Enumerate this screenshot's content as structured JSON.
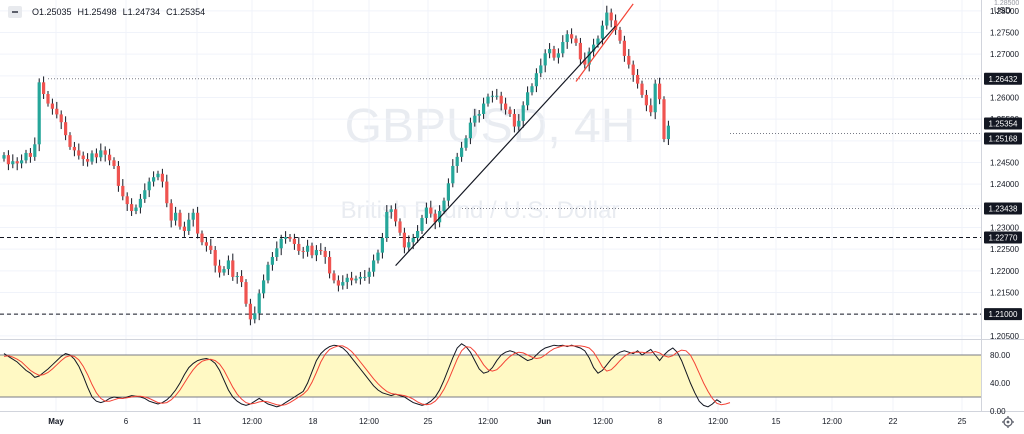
{
  "header": {
    "open": "O1.25035",
    "high": "H1.25498",
    "low": "L1.24734",
    "close": "C1.25354"
  },
  "watermark": {
    "symbol": "GBPUSD, 4H",
    "name": "British Pound / U.S. Dollar"
  },
  "axis": {
    "currency": "USD",
    "top_clipped_label": "1.28500"
  },
  "colors": {
    "up": "#26a69a",
    "down": "#ef5350",
    "wick": "#131722",
    "stoch_k": "#131722",
    "stoch_d": "#f44336",
    "band_fill": "#fff9c4",
    "tag_bg": "#131722",
    "trendline": "#131722",
    "trendline_red": "#f44336"
  },
  "chart_data": [
    {
      "type": "candlestick",
      "title": "GBPUSD, 4H",
      "ylim": [
        1.2045,
        1.2825
      ],
      "y_ticks": [
        "1.28000",
        "1.27500",
        "1.27000",
        "1.26500",
        "1.26000",
        "1.25500",
        "1.25000",
        "1.24500",
        "1.24000",
        "1.23500",
        "1.23000",
        "1.22500",
        "1.22000",
        "1.21500",
        "1.21000",
        "1.20500"
      ],
      "x_ticks": [
        "May",
        "6",
        "11",
        "12:00",
        "18",
        "12:00",
        "25",
        "12:00",
        "Jun",
        "12:00",
        "8",
        "12:00",
        "15",
        "12:00",
        "22",
        "25"
      ],
      "price_tags": [
        {
          "label": "1.26432",
          "value": 1.26432
        },
        {
          "label": "1.25354",
          "value": 1.25354
        },
        {
          "label": "1.25168",
          "value": 1.25168
        },
        {
          "label": "1.23438",
          "value": 1.23438
        },
        {
          "label": "1.22770",
          "value": 1.2277
        },
        {
          "label": "1.21000",
          "value": 1.21
        }
      ],
      "horizontal_lines": [
        {
          "value": 1.26432,
          "style": "dotted"
        },
        {
          "value": 1.25168,
          "style": "dotted"
        },
        {
          "value": 1.23438,
          "style": "dotted"
        },
        {
          "value": 1.2277,
          "style": "dashed"
        },
        {
          "value": 1.21,
          "style": "dashed"
        }
      ],
      "trendlines": [
        {
          "from": [
            89,
            1.2212
          ],
          "to": [
            139,
            1.2765
          ],
          "color": "black"
        },
        {
          "from": [
            130,
            1.2637
          ],
          "to": [
            143,
            1.2816
          ],
          "color": "red"
        }
      ],
      "closes": [
        1.2467,
        1.2446,
        1.2453,
        1.2448,
        1.2455,
        1.2472,
        1.2463,
        1.2492,
        1.2635,
        1.2608,
        1.2586,
        1.2574,
        1.2561,
        1.2543,
        1.2513,
        1.2486,
        1.2478,
        1.2466,
        1.2458,
        1.2452,
        1.2471,
        1.2462,
        1.2478,
        1.2468,
        1.2455,
        1.2442,
        1.2396,
        1.2372,
        1.2354,
        1.2338,
        1.2346,
        1.2366,
        1.2386,
        1.2406,
        1.2416,
        1.2424,
        1.2406,
        1.2356,
        1.2316,
        1.2334,
        1.2302,
        1.2292,
        1.2318,
        1.2334,
        1.2286,
        1.2266,
        1.2258,
        1.2248,
        1.2212,
        1.2196,
        1.2204,
        1.2224,
        1.2186,
        1.2188,
        1.2174,
        1.2124,
        1.2088,
        1.2102,
        1.2148,
        1.2178,
        1.2214,
        1.2232,
        1.2252,
        1.2274,
        1.2278,
        1.2274,
        1.2262,
        1.2246,
        1.2244,
        1.2258,
        1.2236,
        1.2248,
        1.2246,
        1.2232,
        1.2194,
        1.2178,
        1.2166,
        1.2174,
        1.2184,
        1.2178,
        1.2182,
        1.2186,
        1.2186,
        1.2198,
        1.2224,
        1.2242,
        1.2276,
        1.2336,
        1.2342,
        1.2314,
        1.2288,
        1.2254,
        1.2266,
        1.2276,
        1.2292,
        1.2322,
        1.2346,
        1.2332,
        1.2312,
        1.2338,
        1.2362,
        1.2402,
        1.2442,
        1.2463,
        1.2484,
        1.2506,
        1.2542,
        1.2558,
        1.2562,
        1.2586,
        1.2602,
        1.2604,
        1.2604,
        1.2586,
        1.2572,
        1.2562,
        1.2533,
        1.2546,
        1.2582,
        1.2612,
        1.2626,
        1.2656,
        1.2674,
        1.2702,
        1.2712,
        1.2692,
        1.2702,
        1.2728,
        1.2746,
        1.2736,
        1.2726,
        1.2688,
        1.2676,
        1.2706,
        1.2722,
        1.2736,
        1.2766,
        1.2796,
        1.2778,
        1.2756,
        1.2731,
        1.2696,
        1.2676,
        1.2652,
        1.2632,
        1.2606,
        1.2582,
        1.2566,
        1.2632,
        1.2596,
        1.2504,
        1.2535
      ],
      "overlay_type": "candlestick"
    },
    {
      "type": "line",
      "title": "Stochastic",
      "ylim": [
        0,
        100
      ],
      "y_ticks": [
        "80.00",
        "40.00",
        "0.00"
      ],
      "band": [
        20,
        80
      ],
      "series": [
        {
          "color": "black",
          "values": [
            82,
            78,
            74,
            70,
            64,
            58,
            54,
            48,
            50,
            55,
            60,
            66,
            72,
            78,
            82,
            80,
            74,
            64,
            50,
            34,
            20,
            14,
            12,
            14,
            18,
            20,
            19,
            18,
            20,
            22,
            21,
            20,
            18,
            14,
            12,
            10,
            12,
            16,
            22,
            30,
            40,
            52,
            62,
            68,
            72,
            74,
            75,
            73,
            68,
            58,
            44,
            30,
            20,
            14,
            10,
            8,
            10,
            14,
            18,
            14,
            10,
            8,
            6,
            8,
            12,
            16,
            20,
            24,
            28,
            40,
            56,
            72,
            82,
            88,
            92,
            94,
            93,
            90,
            84,
            76,
            68,
            60,
            52,
            44,
            36,
            30,
            26,
            24,
            22,
            24,
            22,
            20,
            16,
            12,
            10,
            8,
            10,
            14,
            20,
            30,
            44,
            60,
            76,
            90,
            96,
            92,
            84,
            72,
            60,
            54,
            56,
            62,
            72,
            80,
            84,
            86,
            84,
            80,
            76,
            72,
            74,
            80,
            86,
            90,
            92,
            94,
            93,
            94,
            92,
            94,
            92,
            90,
            86,
            76,
            62,
            54,
            58,
            66,
            74,
            80,
            84,
            86,
            84,
            82,
            86,
            80,
            84,
            88,
            80,
            72,
            80,
            86,
            90,
            84,
            72,
            56,
            40,
            26,
            14,
            8,
            6,
            10,
            16,
            12
          ]
        },
        {
          "color": "red",
          "values": [
            78,
            79,
            77,
            74,
            70,
            64,
            58,
            54,
            51,
            52,
            55,
            60,
            66,
            72,
            77,
            79,
            78,
            73,
            64,
            52,
            38,
            26,
            18,
            14,
            14,
            16,
            18,
            18,
            19,
            20,
            21,
            21,
            20,
            18,
            15,
            12,
            11,
            12,
            16,
            22,
            30,
            40,
            50,
            59,
            66,
            71,
            73,
            74,
            72,
            67,
            58,
            46,
            34,
            24,
            17,
            12,
            10,
            11,
            13,
            14,
            13,
            11,
            9,
            8,
            9,
            12,
            16,
            20,
            24,
            30,
            41,
            55,
            70,
            81,
            88,
            91,
            93,
            93,
            90,
            85,
            78,
            70,
            62,
            54,
            46,
            39,
            33,
            28,
            25,
            24,
            23,
            22,
            20,
            17,
            13,
            10,
            9,
            10,
            14,
            21,
            31,
            44,
            59,
            74,
            86,
            92,
            91,
            85,
            76,
            66,
            59,
            57,
            59,
            65,
            72,
            78,
            82,
            84,
            83,
            80,
            77,
            75,
            76,
            80,
            85,
            89,
            91,
            93,
            93,
            93,
            93,
            93,
            92,
            90,
            84,
            74,
            63,
            57,
            59,
            65,
            72,
            78,
            82,
            84,
            84,
            84,
            83,
            83,
            85,
            83,
            79,
            77,
            79,
            84,
            87,
            86,
            80,
            68,
            54,
            40,
            28,
            18,
            11,
            9,
            10,
            12
          ]
        }
      ]
    }
  ]
}
